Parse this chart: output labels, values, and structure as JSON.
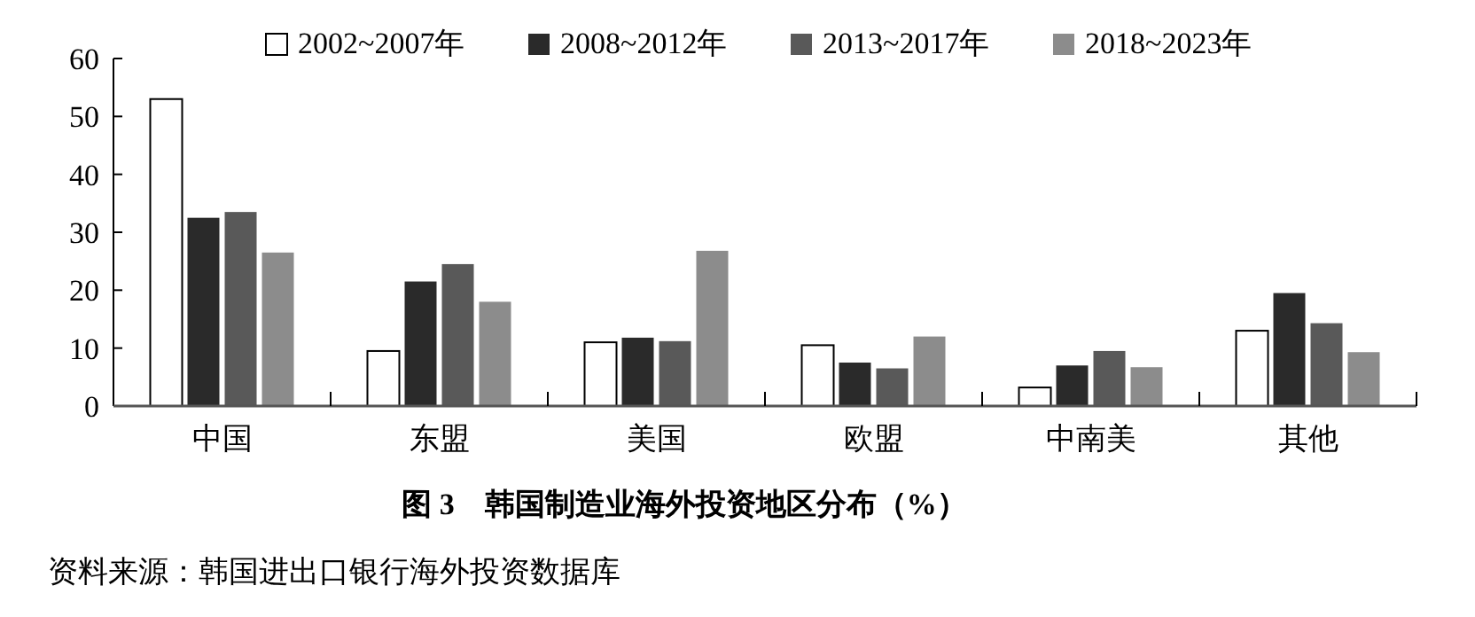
{
  "chart_data": {
    "type": "bar",
    "title": "图 3　韩国制造业海外投资地区分布（%）",
    "categories": [
      "中国",
      "东盟",
      "美国",
      "欧盟",
      "中南美",
      "其他"
    ],
    "series": [
      {
        "name": "2002~2007年",
        "color": "#ffffff",
        "values": [
          53,
          9.5,
          11,
          10.5,
          3.2,
          13
        ]
      },
      {
        "name": "2008~2012年",
        "color": "#2a2a2a",
        "values": [
          32.5,
          21.5,
          11.8,
          7.5,
          7,
          19.5
        ]
      },
      {
        "name": "2013~2017年",
        "color": "#595959",
        "values": [
          33.5,
          24.5,
          11.2,
          6.5,
          9.5,
          14.3
        ]
      },
      {
        "name": "2018~2023年",
        "color": "#8c8c8c",
        "values": [
          26.5,
          18,
          26.8,
          12,
          6.7,
          9.3
        ]
      }
    ],
    "ylim": [
      0,
      60
    ],
    "yticks": [
      0,
      10,
      20,
      30,
      40,
      50,
      60
    ],
    "legend": "top",
    "annotations": [
      "资料来源：韩国进出口银行海外投资数据库"
    ]
  }
}
